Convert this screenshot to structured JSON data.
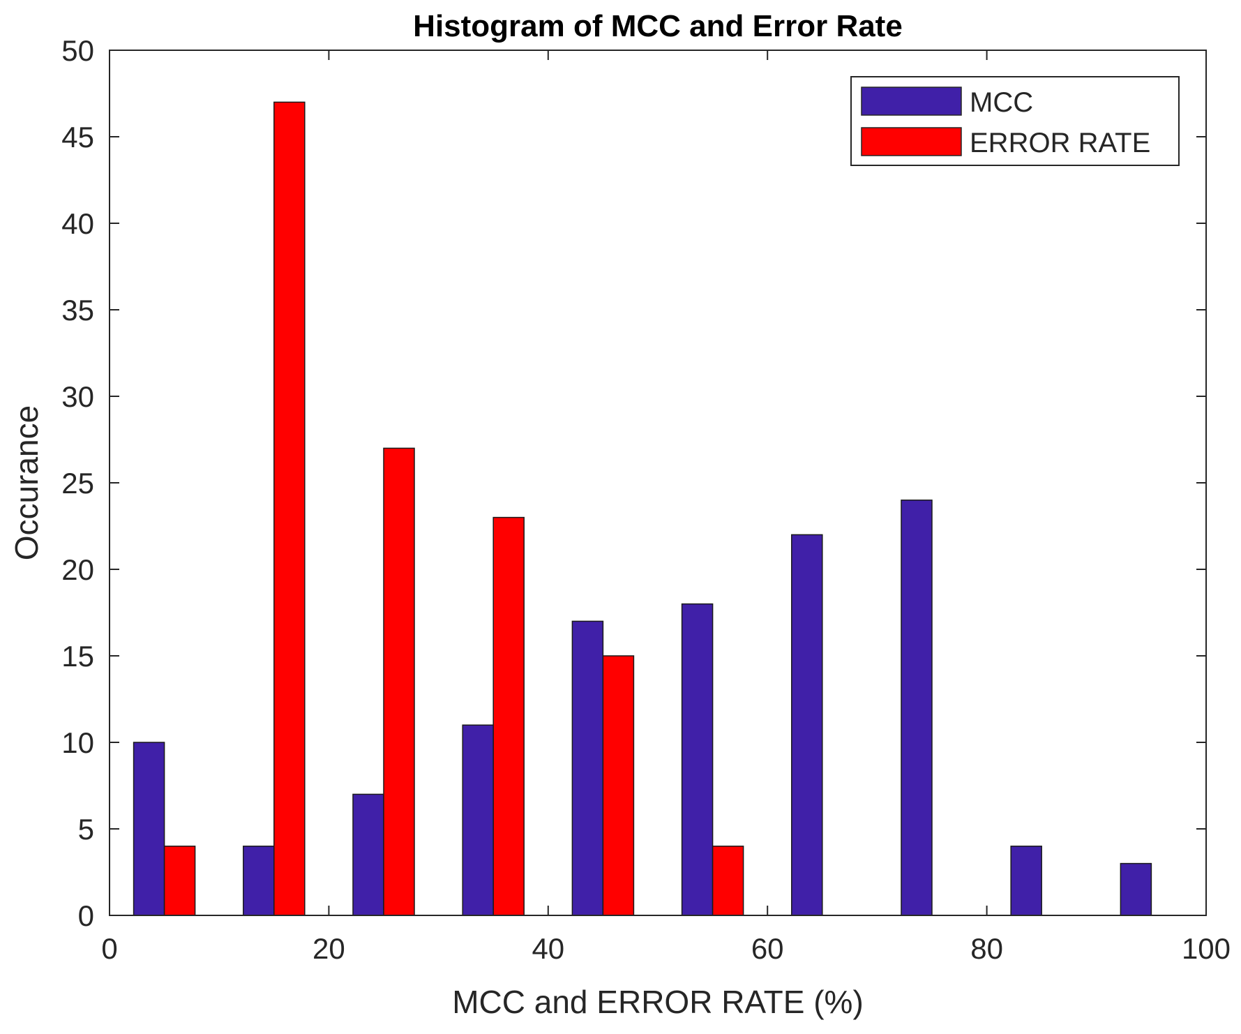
{
  "chart_data": {
    "type": "bar",
    "title": "Histogram of MCC and Error Rate",
    "xlabel": "MCC and ERROR RATE (%)",
    "ylabel": "Occurance",
    "xlim": [
      0,
      100
    ],
    "ylim": [
      0,
      50
    ],
    "xticks": [
      0,
      20,
      40,
      60,
      80,
      100
    ],
    "yticks": [
      0,
      5,
      10,
      15,
      20,
      25,
      30,
      35,
      40,
      45,
      50
    ],
    "bin_centers": [
      5,
      15,
      25,
      35,
      45,
      55,
      65,
      75,
      85,
      95
    ],
    "series": [
      {
        "name": "MCC",
        "color": "#4020a8",
        "values": [
          10,
          4,
          7,
          11,
          17,
          18,
          22,
          24,
          4,
          3
        ]
      },
      {
        "name": "ERROR RATE",
        "color": "#ff0000",
        "values": [
          4,
          47,
          27,
          23,
          15,
          4,
          0,
          0,
          0,
          0
        ]
      }
    ],
    "grid": false,
    "legend_position": "top-right"
  }
}
